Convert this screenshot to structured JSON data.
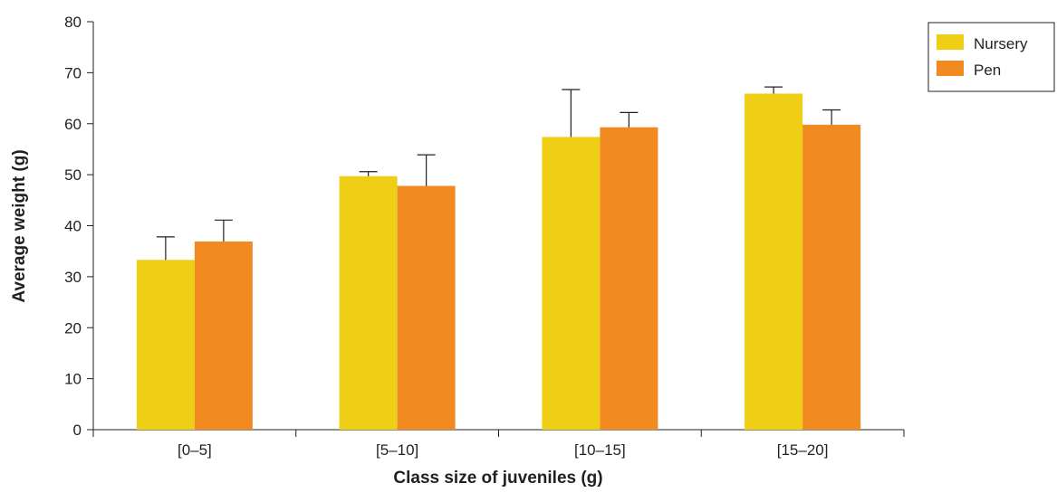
{
  "chart_data": {
    "type": "bar",
    "categories": [
      "[0–5]",
      "[5–10]",
      "[10–15]",
      "[15–20]"
    ],
    "series": [
      {
        "name": "Nursery",
        "color": "#eecf16",
        "values": [
          33.3,
          49.7,
          57.4,
          65.9
        ],
        "errors": [
          4.5,
          0.9,
          9.3,
          1.3
        ]
      },
      {
        "name": "Pen",
        "color": "#f18a21",
        "values": [
          36.9,
          47.8,
          59.3,
          59.8
        ],
        "errors": [
          4.2,
          6.1,
          2.9,
          2.9
        ]
      }
    ],
    "title": "",
    "xlabel": "Class size of juveniles (g)",
    "ylabel": "Average weight (g)",
    "ylim": [
      0,
      80
    ],
    "yticks": [
      0,
      10,
      20,
      30,
      40,
      50,
      60,
      70,
      80
    ],
    "grid": false,
    "legend": "top-right"
  }
}
